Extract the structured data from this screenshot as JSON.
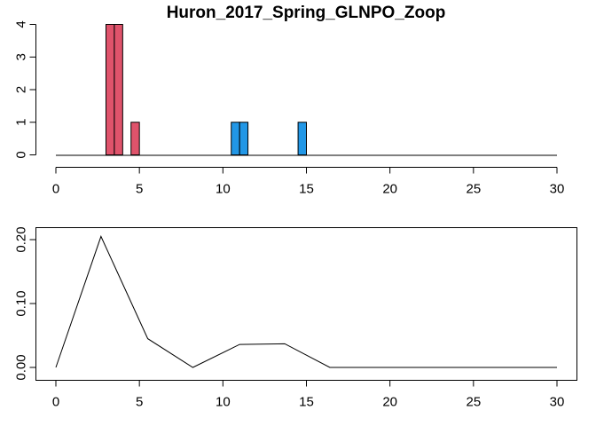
{
  "chart_data": [
    {
      "type": "bar",
      "title": "Huron_2017_Spring_GLNPO_Zoop",
      "xlabel": "",
      "ylabel": "",
      "xlim": [
        0,
        30
      ],
      "ylim": [
        0,
        4
      ],
      "x_ticks": [
        "0",
        "5",
        "10",
        "15",
        "20",
        "25",
        "30"
      ],
      "y_ticks": [
        "0",
        "1",
        "2",
        "3",
        "4"
      ],
      "baseline": {
        "from": 0,
        "to": 30,
        "y": 0
      },
      "series": [
        {
          "color": "#DF536B",
          "bars": [
            {
              "x0": 3.0,
              "x1": 3.5,
              "value": 4
            },
            {
              "x0": 3.5,
              "x1": 4.0,
              "value": 4
            },
            {
              "x0": 4.5,
              "x1": 5.0,
              "value": 1
            }
          ]
        },
        {
          "color": "#2297E6",
          "bars": [
            {
              "x0": 10.5,
              "x1": 11.0,
              "value": 1
            },
            {
              "x0": 11.0,
              "x1": 11.5,
              "value": 1
            },
            {
              "x0": 14.5,
              "x1": 15.0,
              "value": 1
            }
          ]
        }
      ]
    },
    {
      "type": "line",
      "title": "",
      "xlabel": "",
      "ylabel": "",
      "xlim": [
        0,
        30
      ],
      "ylim": [
        0,
        0.2
      ],
      "x_ticks": [
        "0",
        "5",
        "10",
        "15",
        "20",
        "25",
        "30"
      ],
      "y_ticks": [
        "0.00",
        "0.10",
        "0.20"
      ],
      "series": [
        {
          "color": "#000000",
          "x": [
            0,
            2.7,
            5.5,
            8.2,
            11.0,
            13.7,
            16.4,
            30
          ],
          "y": [
            0.0,
            0.205,
            0.045,
            0.0,
            0.036,
            0.037,
            0.0,
            0.0
          ]
        }
      ]
    }
  ]
}
